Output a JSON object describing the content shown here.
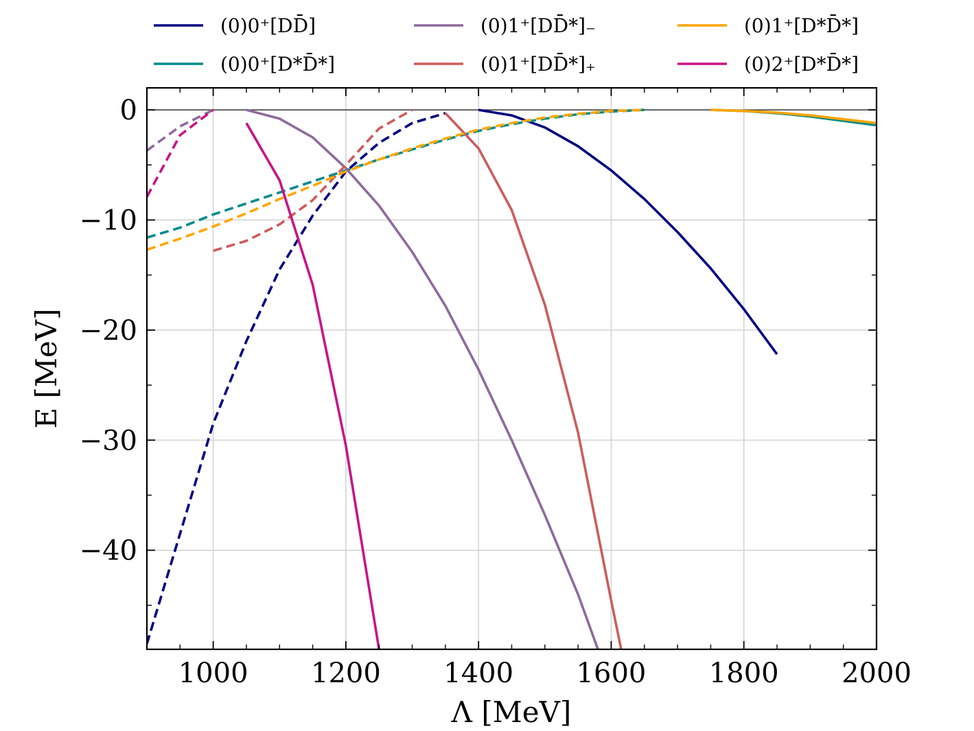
{
  "chart_data": {
    "type": "line",
    "title": "",
    "xlabel": "Λ [MeV]",
    "ylabel": "E [MeV]",
    "xlim": [
      900,
      2000
    ],
    "ylim": [
      -49,
      2
    ],
    "xticks": [
      1000,
      1200,
      1400,
      1600,
      1800,
      2000
    ],
    "yticks": [
      0,
      -10,
      -20,
      -30,
      -40
    ],
    "xtick_labels": [
      "1000",
      "1200",
      "1400",
      "1600",
      "1800",
      "2000"
    ],
    "ytick_labels": [
      "0",
      "−10",
      "−20",
      "−30",
      "−40"
    ],
    "grid": true,
    "zero_line": 0,
    "legend_position": "top (above plot, 3 columns)",
    "series": [
      {
        "name": "(0)0⁺[DD̄]",
        "color": "#000080",
        "segments": [
          {
            "style": "dashed",
            "x": [
              900,
              950,
              1000,
              1050,
              1100,
              1150,
              1200,
              1250,
              1300,
              1350
            ],
            "y": [
              -48.5,
              -38.5,
              -28.5,
              -21.0,
              -14.5,
              -9.6,
              -5.6,
              -3.0,
              -1.2,
              -0.3
            ]
          },
          {
            "style": "solid",
            "x": [
              1400,
              1450,
              1500,
              1550,
              1600,
              1650,
              1700,
              1750,
              1800,
              1850
            ],
            "y": [
              0,
              -0.5,
              -1.6,
              -3.3,
              -5.5,
              -8.1,
              -11.1,
              -14.4,
              -18.1,
              -22.2
            ]
          }
        ]
      },
      {
        "name": "(0)0⁺[D*D̄*]",
        "color": "#008B8B",
        "segments": [
          {
            "style": "dashed",
            "x": [
              900,
              950,
              1000,
              1050,
              1100,
              1150,
              1200,
              1250,
              1300,
              1350,
              1400,
              1450,
              1500,
              1550,
              1600,
              1650
            ],
            "y": [
              -11.6,
              -10.7,
              -9.5,
              -8.5,
              -7.5,
              -6.5,
              -5.5,
              -4.5,
              -3.6,
              -2.7,
              -1.9,
              -1.3,
              -0.8,
              -0.4,
              -0.15,
              0
            ]
          },
          {
            "style": "solid",
            "x": [
              1750,
              1800,
              1850,
              1900,
              1950,
              2000
            ],
            "y": [
              0,
              -0.1,
              -0.3,
              -0.6,
              -1.0,
              -1.4
            ]
          }
        ]
      },
      {
        "name": "(0)1⁺[DD̄*]₋",
        "color": "#8E6A9B",
        "segments": [
          {
            "style": "dashed",
            "x": [
              900,
              950,
              1000
            ],
            "y": [
              -3.7,
              -1.5,
              0
            ]
          },
          {
            "style": "solid",
            "x": [
              1050,
              1100,
              1150,
              1200,
              1250,
              1300,
              1350,
              1400,
              1450,
              1500,
              1550,
              1580
            ],
            "y": [
              0,
              -0.8,
              -2.5,
              -5.3,
              -8.7,
              -12.9,
              -17.8,
              -23.6,
              -30.0,
              -36.8,
              -44.0,
              -49.0
            ]
          }
        ]
      },
      {
        "name": "(0)1⁺[DD̄*]₊",
        "color": "#CD5C5C",
        "segments": [
          {
            "style": "dashed",
            "x": [
              1000,
              1050,
              1100,
              1150,
              1200,
              1250,
              1300
            ],
            "y": [
              -12.8,
              -11.9,
              -10.4,
              -8.2,
              -5.0,
              -1.7,
              0
            ]
          },
          {
            "style": "solid",
            "x": [
              1350,
              1400,
              1450,
              1500,
              1550,
              1600,
              1615
            ],
            "y": [
              -0.3,
              -3.5,
              -9.1,
              -17.7,
              -29.3,
              -44.6,
              -49.0
            ]
          }
        ]
      },
      {
        "name": "(0)1⁺[D*D̄*]",
        "color": "#FFA500",
        "segments": [
          {
            "style": "dashed",
            "x": [
              900,
              950,
              1000,
              1050,
              1100,
              1150,
              1200,
              1250,
              1300,
              1350,
              1400,
              1450,
              1500,
              1550,
              1600,
              1650
            ],
            "y": [
              -12.7,
              -11.7,
              -10.6,
              -9.4,
              -8.1,
              -6.9,
              -5.6,
              -4.5,
              -3.5,
              -2.6,
              -1.8,
              -1.2,
              -0.7,
              -0.35,
              -0.1,
              0
            ]
          },
          {
            "style": "solid",
            "x": [
              1750,
              1800,
              1850,
              1900,
              1950,
              2000
            ],
            "y": [
              0,
              -0.1,
              -0.25,
              -0.5,
              -0.85,
              -1.2
            ]
          }
        ]
      },
      {
        "name": "(0)2⁺[D*D̄*]",
        "color": "#C71585",
        "segments": [
          {
            "style": "dashed",
            "x": [
              900,
              950,
              1000
            ],
            "y": [
              -7.9,
              -2.3,
              0
            ]
          },
          {
            "style": "solid",
            "x": [
              1050,
              1100,
              1150,
              1200,
              1250
            ],
            "y": [
              -1.2,
              -6.4,
              -15.9,
              -30.5,
              -49.0
            ]
          }
        ]
      }
    ]
  }
}
